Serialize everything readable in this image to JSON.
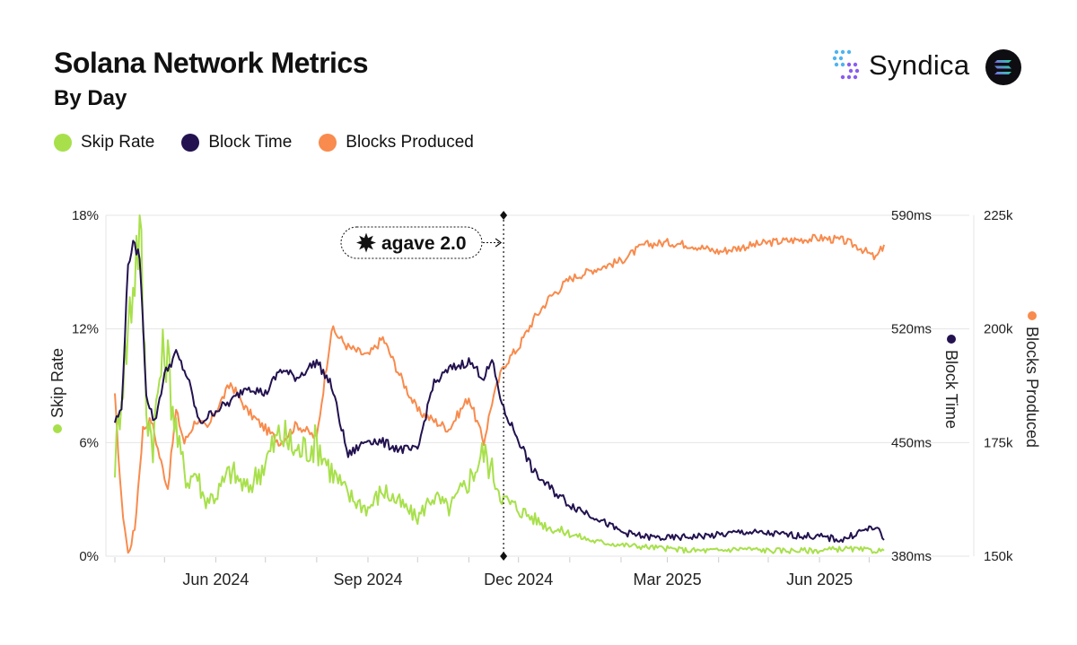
{
  "header": {
    "title": "Solana Network Metrics",
    "subtitle": "By Day",
    "brand_name": "Syndica"
  },
  "icons": {
    "brand_logo": "syndica-logo-icon",
    "solana_logo": "solana-logo-icon",
    "agave_logo": "agave-logo-icon"
  },
  "colors": {
    "skip_rate": "#a8e04c",
    "block_time": "#23124f",
    "blocks_produced": "#f88b4d",
    "grid": "#e5e5e5",
    "axis_text": "#222222"
  },
  "legend": [
    {
      "label": "Skip Rate",
      "color": "#a8e04c"
    },
    {
      "label": "Block Time",
      "color": "#23124f"
    },
    {
      "label": "Blocks Produced",
      "color": "#f88b4d"
    }
  ],
  "chart_data": {
    "type": "line",
    "x_range": [
      "2024-04-01",
      "2025-07-10"
    ],
    "x_ticks": [
      {
        "date": "2024-06-01",
        "label": "Jun 2024"
      },
      {
        "date": "2024-09-01",
        "label": "Sep 2024"
      },
      {
        "date": "2024-12-01",
        "label": "Dec 2024"
      },
      {
        "date": "2025-03-01",
        "label": "Mar 2025"
      },
      {
        "date": "2025-06-01",
        "label": "Jun 2025"
      }
    ],
    "y_left": {
      "label": "Skip Rate",
      "range": [
        0,
        18
      ],
      "ticks": [
        "0%",
        "6%",
        "12%",
        "18%"
      ]
    },
    "y_right1": {
      "label": "Block Time",
      "range": [
        380,
        590
      ],
      "ticks": [
        "380ms",
        "450ms",
        "520ms",
        "590ms"
      ]
    },
    "y_right2": {
      "label": "Blocks Produced",
      "range": [
        150000,
        225000
      ],
      "ticks": [
        "150k",
        "175k",
        "200k",
        "225k"
      ]
    },
    "grid": true,
    "legend_position": "top-left",
    "annotation": {
      "label": "agave 2.0",
      "date": "2024-11-22"
    },
    "series": [
      {
        "name": "Skip Rate",
        "axis": "left",
        "x": [
          "2024-04-01",
          "2024-04-05",
          "2024-04-09",
          "2024-04-13",
          "2024-04-16",
          "2024-04-20",
          "2024-04-24",
          "2024-04-28",
          "2024-05-02",
          "2024-05-06",
          "2024-05-10",
          "2024-05-15",
          "2024-05-20",
          "2024-05-25",
          "2024-06-01",
          "2024-06-10",
          "2024-06-20",
          "2024-07-01",
          "2024-07-10",
          "2024-07-20",
          "2024-08-01",
          "2024-08-10",
          "2024-08-20",
          "2024-09-01",
          "2024-09-10",
          "2024-09-20",
          "2024-10-01",
          "2024-10-10",
          "2024-10-20",
          "2024-11-01",
          "2024-11-10",
          "2024-11-15",
          "2024-11-22",
          "2024-12-01",
          "2024-12-10",
          "2024-12-20",
          "2025-01-01",
          "2025-01-15",
          "2025-02-01",
          "2025-02-15",
          "2025-03-01",
          "2025-03-15",
          "2025-04-01",
          "2025-04-15",
          "2025-05-01",
          "2025-05-15",
          "2025-06-01",
          "2025-06-15",
          "2025-07-01",
          "2025-07-10"
        ],
        "y": [
          4.8,
          9.0,
          12.0,
          15.5,
          17.8,
          8.0,
          6.0,
          9.5,
          11.0,
          8.0,
          5.5,
          4.0,
          4.5,
          3.0,
          3.2,
          4.5,
          3.5,
          5.0,
          6.5,
          5.5,
          6.0,
          4.5,
          3.2,
          2.5,
          3.5,
          2.8,
          2.0,
          3.2,
          2.5,
          4.0,
          5.5,
          4.5,
          3.0,
          2.5,
          2.0,
          1.5,
          1.2,
          0.8,
          0.6,
          0.5,
          0.4,
          0.3,
          0.3,
          0.4,
          0.3,
          0.3,
          0.3,
          0.4,
          0.3,
          0.3
        ]
      },
      {
        "name": "Block Time",
        "axis": "right1",
        "x": [
          "2024-04-01",
          "2024-04-05",
          "2024-04-09",
          "2024-04-12",
          "2024-04-16",
          "2024-04-20",
          "2024-04-25",
          "2024-05-01",
          "2024-05-08",
          "2024-05-15",
          "2024-05-22",
          "2024-06-01",
          "2024-06-10",
          "2024-06-20",
          "2024-07-01",
          "2024-07-10",
          "2024-07-20",
          "2024-08-01",
          "2024-08-10",
          "2024-08-20",
          "2024-09-01",
          "2024-09-10",
          "2024-09-20",
          "2024-10-01",
          "2024-10-10",
          "2024-10-20",
          "2024-11-01",
          "2024-11-10",
          "2024-11-15",
          "2024-11-22",
          "2024-12-01",
          "2024-12-10",
          "2024-12-20",
          "2025-01-01",
          "2025-01-15",
          "2025-02-01",
          "2025-02-15",
          "2025-03-01",
          "2025-03-15",
          "2025-04-01",
          "2025-04-15",
          "2025-05-01",
          "2025-05-15",
          "2025-06-01",
          "2025-06-15",
          "2025-06-25",
          "2025-07-05",
          "2025-07-10"
        ],
        "y": [
          463,
          470,
          560,
          572,
          565,
          480,
          462,
          492,
          505,
          490,
          462,
          470,
          475,
          485,
          480,
          495,
          490,
          500,
          485,
          442,
          452,
          450,
          446,
          445,
          485,
          495,
          500,
          490,
          500,
          470,
          452,
          432,
          422,
          412,
          405,
          395,
          392,
          391,
          392,
          393,
          395,
          394,
          393,
          392,
          390,
          395,
          398,
          390
        ]
      },
      {
        "name": "Blocks Produced",
        "axis": "right2",
        "x": [
          "2024-04-01",
          "2024-04-05",
          "2024-04-09",
          "2024-04-13",
          "2024-04-18",
          "2024-04-23",
          "2024-04-28",
          "2024-05-03",
          "2024-05-08",
          "2024-05-13",
          "2024-05-20",
          "2024-05-27",
          "2024-06-01",
          "2024-06-10",
          "2024-06-20",
          "2024-07-01",
          "2024-07-10",
          "2024-07-20",
          "2024-08-01",
          "2024-08-10",
          "2024-08-20",
          "2024-09-01",
          "2024-09-10",
          "2024-09-20",
          "2024-10-01",
          "2024-10-10",
          "2024-10-20",
          "2024-11-01",
          "2024-11-10",
          "2024-11-15",
          "2024-11-22",
          "2024-12-01",
          "2024-12-10",
          "2024-12-20",
          "2025-01-01",
          "2025-01-15",
          "2025-02-01",
          "2025-02-15",
          "2025-03-01",
          "2025-03-15",
          "2025-04-01",
          "2025-04-15",
          "2025-05-01",
          "2025-05-15",
          "2025-06-01",
          "2025-06-15",
          "2025-06-25",
          "2025-07-05",
          "2025-07-10"
        ],
        "y": [
          185000,
          162000,
          150500,
          156000,
          178000,
          180000,
          172000,
          165000,
          182000,
          175000,
          180000,
          178000,
          182000,
          188000,
          182000,
          178000,
          175000,
          179000,
          176000,
          200000,
          196000,
          194000,
          198000,
          190000,
          182000,
          180000,
          178000,
          185000,
          175000,
          184000,
          192000,
          196000,
          202000,
          207000,
          211000,
          213000,
          215000,
          218500,
          219000,
          218500,
          217000,
          218000,
          219000,
          219500,
          220000,
          219500,
          218000,
          215500,
          218500
        ]
      }
    ]
  }
}
